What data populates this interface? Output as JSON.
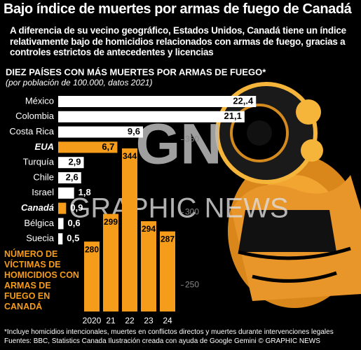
{
  "header": {
    "title": "Bajo índice de muertes por armas de fuego de Canadá",
    "subtitle": "A diferencia de su vecino geográfico, Estados Unidos, Canadá tiene un índice relativamente bajo de homicidios relacionados con armas de fuego, gracias a controles estrictos de antecedentes y licencias"
  },
  "chart_data": [
    {
      "type": "hbar",
      "title": "DIEZ PAÍSES CON MÁS MUERTES POR ARMAS DE FUEGO*",
      "subtitle": "(por población de 100.000, datos 2021)",
      "categories": [
        "México",
        "Colombia",
        "Costa Rica",
        "EUA",
        "Turquía",
        "Chile",
        "Israel",
        "Canadá",
        "Bélgica",
        "Suecia"
      ],
      "values": [
        22.4,
        21.1,
        9.6,
        6.7,
        2.9,
        2.6,
        1.8,
        0.9,
        0.6,
        0.5
      ],
      "value_labels": [
        "22,.4",
        "21,1",
        "9,6",
        "6,7",
        "2,9",
        "2,6",
        "1,8",
        "0,9",
        "0,6",
        "0,5"
      ],
      "colors": [
        "#ffffff",
        "#ffffff",
        "#ffffff",
        "#f59c1a",
        "#ffffff",
        "#ffffff",
        "#ffffff",
        "#f59c1a",
        "#ffffff",
        "#ffffff"
      ],
      "xlim": [
        0,
        25
      ]
    },
    {
      "type": "bar",
      "title": "NÚMERO DE VÍCTIMAS DE HOMICIDIOS CON ARMAS DE FUEGO EN CANADÁ",
      "categories": [
        "2020",
        "21",
        "22",
        "23",
        "24"
      ],
      "values": [
        280,
        299,
        344,
        294,
        287
      ],
      "color": "#f59c1a",
      "ylim": [
        232,
        356
      ],
      "yticks": [
        250,
        300,
        350
      ]
    }
  ],
  "watermark": {
    "logo": "GN",
    "text": "GRAPHIC NEWS"
  },
  "footer": {
    "note": "*Incluye homicidios intencionales, muertes en conflictos directos  y muertes durante intervenciones legales",
    "source": "Fuentes: BBC, Statistics Canada  Ilustración creada con ayuda de Google Gemini  © GRAPHIC NEWS"
  }
}
